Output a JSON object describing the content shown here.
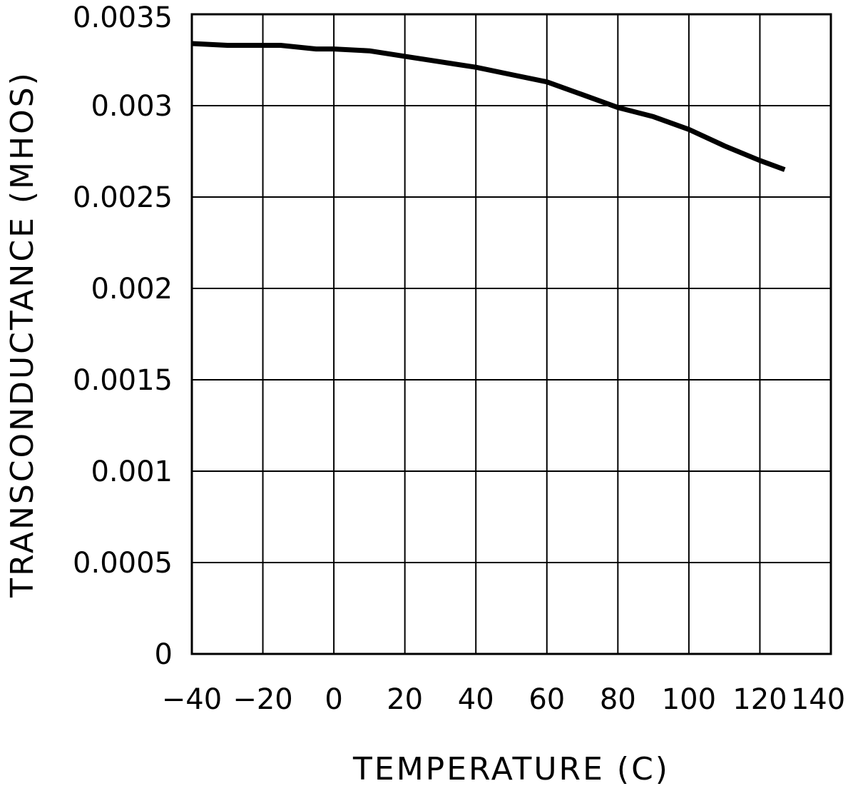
{
  "chart_data": {
    "type": "line",
    "title": "",
    "xlabel": "TEMPERATURE (C)",
    "ylabel": "TRANSCONDUCTANCE (MHOS)",
    "xlim": [
      -40,
      140
    ],
    "ylim": [
      0,
      0.0035
    ],
    "x_ticks": [
      -40,
      -20,
      0,
      20,
      40,
      60,
      80,
      100,
      120,
      140
    ],
    "x_tick_labels": [
      "−40",
      "−20",
      "0",
      "20",
      "40",
      "60",
      "80",
      "100",
      "120",
      "140"
    ],
    "y_ticks": [
      0,
      0.0005,
      0.001,
      0.0015,
      0.002,
      0.0025,
      0.003,
      0.0035
    ],
    "y_tick_labels": [
      "0",
      "0.0005",
      "0.001",
      "0.0015",
      "0.002",
      "0.0025",
      "0.003",
      "0.0035"
    ],
    "grid": true,
    "legend": "none",
    "line_color": "#000000",
    "series": [
      {
        "x": [
          -40,
          -30,
          -20,
          -15,
          -5,
          0,
          10,
          20,
          30,
          40,
          50,
          60,
          70,
          80,
          90,
          100,
          110,
          120,
          127
        ],
        "y": [
          0.00334,
          0.00333,
          0.00333,
          0.00333,
          0.00331,
          0.00331,
          0.0033,
          0.00327,
          0.00324,
          0.00321,
          0.00317,
          0.00313,
          0.00306,
          0.00299,
          0.00294,
          0.00287,
          0.00278,
          0.0027,
          0.00265
        ]
      }
    ]
  }
}
